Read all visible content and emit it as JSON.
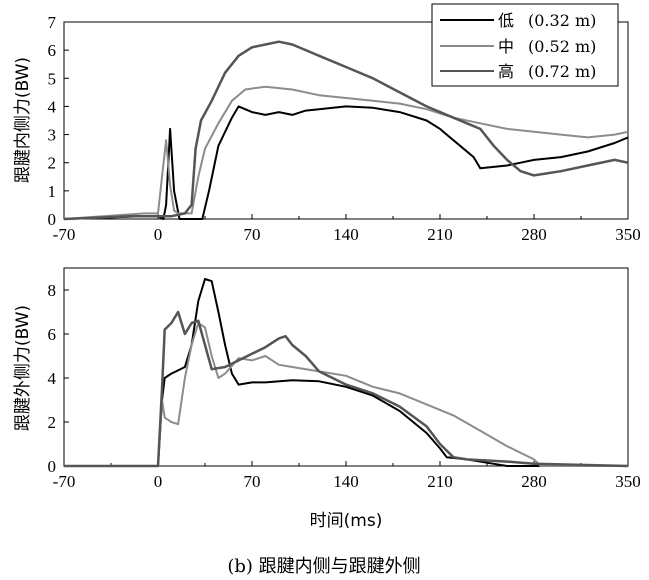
{
  "figure_caption": "(b) 跟腱内侧与跟腱外侧",
  "chart_data": [
    {
      "type": "line",
      "ylabel": "跟腱内侧力(BW)",
      "xlabel": "",
      "xlim": [
        -70,
        350
      ],
      "ylim": [
        0,
        7
      ],
      "xticks": [
        "-70",
        "0",
        "70",
        "140",
        "210",
        "280",
        "350"
      ],
      "yticks": [
        "0",
        "1",
        "2",
        "3",
        "4",
        "5",
        "6",
        "7"
      ],
      "legend": {
        "position": "top-right",
        "entries": [
          {
            "name": "低",
            "detail": "(0.32 m)"
          },
          {
            "name": "中",
            "detail": "(0.52 m)"
          },
          {
            "name": "高",
            "detail": "(0.72 m)"
          }
        ]
      },
      "series": [
        {
          "name": "低 (0.32 m)",
          "color": "#000000",
          "x": [
            -70,
            -10,
            0,
            4,
            6,
            9,
            12,
            16,
            20,
            25,
            30,
            33,
            38,
            45,
            55,
            60,
            70,
            80,
            90,
            100,
            110,
            120,
            140,
            160,
            180,
            200,
            210,
            215,
            225,
            235,
            240,
            250,
            260,
            270,
            280,
            300,
            320,
            340,
            350
          ],
          "y": [
            0,
            0.1,
            0.1,
            0,
            0.5,
            3.2,
            1.0,
            0,
            0,
            0,
            0,
            0,
            1.0,
            2.6,
            3.6,
            4.0,
            3.8,
            3.7,
            3.8,
            3.7,
            3.85,
            3.9,
            4.0,
            3.95,
            3.8,
            3.5,
            3.2,
            3.0,
            2.6,
            2.2,
            1.8,
            1.85,
            1.9,
            2.0,
            2.1,
            2.2,
            2.4,
            2.7,
            2.9
          ]
        },
        {
          "name": "中 (0.52 m)",
          "color": "#8c8c8c",
          "x": [
            -70,
            -10,
            0,
            3,
            6,
            9,
            12,
            15,
            25,
            30,
            35,
            45,
            55,
            65,
            80,
            100,
            120,
            140,
            160,
            180,
            200,
            220,
            240,
            260,
            280,
            300,
            320,
            340,
            350
          ],
          "y": [
            0,
            0.2,
            0.2,
            1.5,
            2.8,
            1.2,
            0.3,
            0.2,
            0.2,
            1.5,
            2.5,
            3.4,
            4.2,
            4.6,
            4.7,
            4.6,
            4.4,
            4.3,
            4.2,
            4.1,
            3.9,
            3.6,
            3.4,
            3.2,
            3.1,
            3.0,
            2.9,
            3.0,
            3.1
          ]
        },
        {
          "name": "高 (0.72 m)",
          "color": "#555555",
          "x": [
            -70,
            -20,
            0,
            10,
            20,
            25,
            28,
            32,
            40,
            50,
            60,
            70,
            80,
            90,
            100,
            110,
            120,
            140,
            160,
            180,
            200,
            220,
            240,
            250,
            260,
            270,
            280,
            300,
            320,
            340,
            350
          ],
          "y": [
            0,
            0.1,
            0.1,
            0.1,
            0.2,
            0.5,
            2.5,
            3.5,
            4.2,
            5.2,
            5.8,
            6.1,
            6.2,
            6.3,
            6.2,
            6.0,
            5.8,
            5.4,
            5.0,
            4.5,
            4.0,
            3.6,
            3.2,
            2.6,
            2.1,
            1.7,
            1.55,
            1.7,
            1.9,
            2.1,
            2.0
          ]
        }
      ]
    },
    {
      "type": "line",
      "ylabel": "跟腱外侧力(BW)",
      "xlabel": "时间(ms)",
      "xlim": [
        -70,
        350
      ],
      "ylim": [
        0,
        9
      ],
      "xticks": [
        "-70",
        "0",
        "70",
        "140",
        "210",
        "280",
        "350"
      ],
      "yticks": [
        "0",
        "2",
        "4",
        "6",
        "8"
      ],
      "series": [
        {
          "name": "低 (0.32 m)",
          "color": "#000000",
          "x": [
            -70,
            0,
            3,
            5,
            10,
            20,
            25,
            30,
            35,
            40,
            45,
            50,
            55,
            60,
            70,
            80,
            100,
            120,
            140,
            160,
            180,
            200,
            210,
            215,
            230,
            250,
            260,
            280,
            350
          ],
          "y": [
            0,
            0,
            3.0,
            4.0,
            4.2,
            4.5,
            5.5,
            7.5,
            8.5,
            8.4,
            7.0,
            5.5,
            4.2,
            3.7,
            3.8,
            3.8,
            3.9,
            3.85,
            3.6,
            3.2,
            2.5,
            1.5,
            0.8,
            0.4,
            0.3,
            0.1,
            0,
            0,
            0
          ]
        },
        {
          "name": "中 (0.52 m)",
          "color": "#8c8c8c",
          "x": [
            -70,
            0,
            3,
            5,
            10,
            15,
            20,
            25,
            30,
            35,
            40,
            45,
            50,
            60,
            70,
            80,
            90,
            100,
            120,
            140,
            160,
            180,
            200,
            220,
            240,
            260,
            280,
            285,
            350
          ],
          "y": [
            0,
            0,
            3.0,
            2.2,
            2.0,
            1.9,
            4.0,
            5.5,
            6.5,
            6.3,
            5.0,
            4.0,
            4.2,
            4.9,
            4.8,
            5.0,
            4.6,
            4.5,
            4.3,
            4.1,
            3.6,
            3.3,
            2.8,
            2.3,
            1.6,
            0.9,
            0.3,
            0,
            0
          ]
        },
        {
          "name": "高 (0.72 m)",
          "color": "#555555",
          "x": [
            -70,
            0,
            3,
            5,
            10,
            15,
            20,
            25,
            30,
            35,
            40,
            50,
            60,
            70,
            80,
            90,
            95,
            100,
            110,
            120,
            140,
            160,
            180,
            200,
            210,
            220,
            230,
            260,
            280,
            350
          ],
          "y": [
            0,
            0,
            3.5,
            6.2,
            6.5,
            7.0,
            6.0,
            6.5,
            6.6,
            5.5,
            4.4,
            4.5,
            4.8,
            5.1,
            5.4,
            5.8,
            5.9,
            5.5,
            5.0,
            4.3,
            3.7,
            3.3,
            2.7,
            1.8,
            1.0,
            0.4,
            0.3,
            0.2,
            0.1,
            0
          ]
        }
      ]
    }
  ]
}
